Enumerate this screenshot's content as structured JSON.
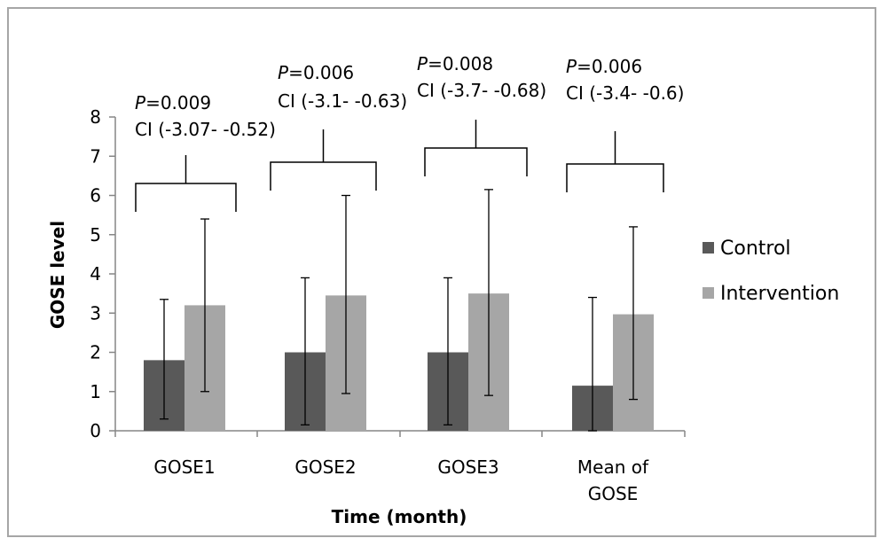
{
  "chart_data": {
    "type": "bar",
    "title": "",
    "xlabel": "Time (month)",
    "ylabel": "GOSE level",
    "ylim": [
      0,
      8
    ],
    "yticks": [
      0,
      1,
      2,
      3,
      4,
      5,
      6,
      7,
      8
    ],
    "grid": false,
    "legend_position": "right",
    "categories": [
      [
        "GOSE1"
      ],
      [
        "GOSE2"
      ],
      [
        "GOSE3"
      ],
      [
        "Mean of",
        "GOSE"
      ]
    ],
    "series": [
      {
        "name": "Control",
        "color": "#595959",
        "values": [
          1.8,
          2.0,
          2.0,
          1.15
        ],
        "error_low": [
          0.3,
          0.15,
          0.15,
          0.0
        ],
        "error_high": [
          3.35,
          3.9,
          3.9,
          3.4
        ]
      },
      {
        "name": "Intervention",
        "color": "#a6a6a6",
        "values": [
          3.2,
          3.45,
          3.5,
          2.97
        ],
        "error_low": [
          1.0,
          0.95,
          0.9,
          0.8
        ],
        "error_high": [
          5.4,
          6.0,
          6.15,
          5.2
        ]
      }
    ],
    "annotations": [
      {
        "p_label": "P",
        "p_value": "=0.009",
        "ci": "CI (-3.07- -0.52)"
      },
      {
        "p_label": "P",
        "p_value": "=0.006",
        "ci": "CI (-3.1- -0.63)"
      },
      {
        "p_label": "P",
        "p_value": "=0.008",
        "ci": "CI (-3.7- -0.68)"
      },
      {
        "p_label": "P",
        "p_value": "=0.006",
        "ci": "CI (-3.4- -0.6)"
      }
    ]
  }
}
